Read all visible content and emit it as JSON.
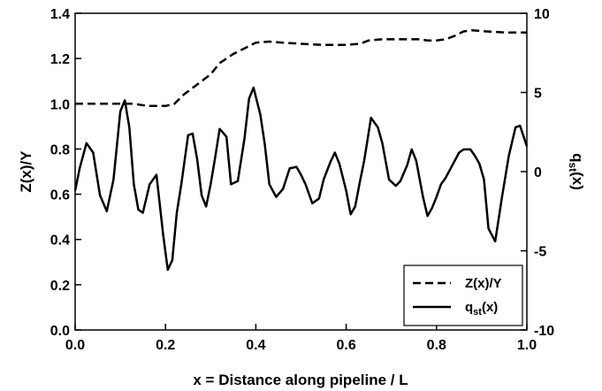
{
  "chart_data": {
    "type": "line",
    "title": "",
    "xlabel": "x = Distance along pipeline / L",
    "ylabel_left": {
      "main": "Z(x)/Y",
      "sub": ""
    },
    "ylabel_right": {
      "main": "q",
      "sub": "st",
      "suffix": "(x)"
    },
    "xlim": [
      0,
      1
    ],
    "ylim_left": [
      0,
      1.4
    ],
    "ylim_right": [
      -10,
      10
    ],
    "x_ticks": [
      "0.0",
      "0.2",
      "0.4",
      "0.6",
      "0.8",
      "1.0"
    ],
    "x_tick_values": [
      0,
      0.2,
      0.4,
      0.6,
      0.8,
      1.0
    ],
    "y_left_ticks": [
      "0.0",
      "0.2",
      "0.4",
      "0.6",
      "0.8",
      "1.0",
      "1.2",
      "1.4"
    ],
    "y_left_tick_values": [
      0,
      0.2,
      0.4,
      0.6,
      0.8,
      1.0,
      1.2,
      1.4
    ],
    "y_right_ticks": [
      "-10",
      "-5",
      "0",
      "5",
      "10"
    ],
    "y_right_tick_values": [
      -10,
      -5,
      0,
      5,
      10
    ],
    "grid": false,
    "legend_position": "bottom-right",
    "series": [
      {
        "name": "Z(x)/Y",
        "axis": "left",
        "style": "dashed",
        "color": "#000000",
        "x": [
          0.0,
          0.05,
          0.1,
          0.13,
          0.16,
          0.2,
          0.22,
          0.24,
          0.26,
          0.28,
          0.3,
          0.32,
          0.35,
          0.38,
          0.4,
          0.43,
          0.46,
          0.5,
          0.55,
          0.6,
          0.63,
          0.65,
          0.68,
          0.72,
          0.76,
          0.78,
          0.8,
          0.82,
          0.84,
          0.86,
          0.88,
          0.91,
          0.95,
          1.0
        ],
        "y": [
          1.0,
          1.0,
          1.0,
          1.0,
          0.99,
          0.99,
          1.0,
          1.04,
          1.07,
          1.1,
          1.13,
          1.18,
          1.22,
          1.25,
          1.27,
          1.275,
          1.27,
          1.265,
          1.26,
          1.26,
          1.265,
          1.28,
          1.285,
          1.285,
          1.285,
          1.28,
          1.28,
          1.285,
          1.3,
          1.32,
          1.325,
          1.32,
          1.315,
          1.315
        ]
      },
      {
        "name": "q_st(x)",
        "label_main": "q",
        "label_sub": "st",
        "label_suffix": "(x)",
        "axis": "right",
        "style": "solid",
        "color": "#000000",
        "x": [
          0.0,
          0.01,
          0.025,
          0.04,
          0.055,
          0.07,
          0.085,
          0.1,
          0.11,
          0.12,
          0.13,
          0.14,
          0.15,
          0.165,
          0.18,
          0.195,
          0.205,
          0.215,
          0.225,
          0.235,
          0.25,
          0.26,
          0.27,
          0.28,
          0.29,
          0.3,
          0.31,
          0.32,
          0.335,
          0.345,
          0.36,
          0.375,
          0.385,
          0.395,
          0.41,
          0.42,
          0.43,
          0.445,
          0.46,
          0.475,
          0.49,
          0.5,
          0.51,
          0.525,
          0.54,
          0.55,
          0.565,
          0.575,
          0.585,
          0.6,
          0.61,
          0.62,
          0.63,
          0.64,
          0.655,
          0.67,
          0.68,
          0.695,
          0.71,
          0.72,
          0.735,
          0.745,
          0.755,
          0.77,
          0.78,
          0.79,
          0.8,
          0.81,
          0.82,
          0.835,
          0.85,
          0.86,
          0.875,
          0.885,
          0.895,
          0.905,
          0.915,
          0.93,
          0.945,
          0.96,
          0.975,
          0.985,
          1.0
        ],
        "y": [
          -1.2,
          0.2,
          1.8,
          1.2,
          -1.5,
          -2.5,
          -0.5,
          3.8,
          4.5,
          2.8,
          -0.8,
          -2.4,
          -2.6,
          -0.8,
          -0.2,
          -4.0,
          -6.2,
          -5.6,
          -2.6,
          -0.8,
          2.3,
          2.4,
          0.8,
          -1.5,
          -2.2,
          -0.8,
          0.9,
          2.7,
          2.2,
          -0.8,
          -0.6,
          2.1,
          4.6,
          5.3,
          3.6,
          1.7,
          -0.8,
          -1.6,
          -1.1,
          0.2,
          0.3,
          -0.2,
          -0.8,
          -2.0,
          -1.7,
          -0.5,
          0.6,
          1.2,
          0.5,
          -1.2,
          -2.7,
          -2.2,
          -0.7,
          0.7,
          3.4,
          2.8,
          1.8,
          -0.5,
          -0.9,
          -0.6,
          0.4,
          1.4,
          0.7,
          -1.6,
          -2.8,
          -2.3,
          -1.6,
          -0.8,
          -0.4,
          0.4,
          1.2,
          1.4,
          1.4,
          1.0,
          0.5,
          -0.5,
          -3.6,
          -4.4,
          -1.6,
          1.0,
          2.8,
          2.9,
          1.6
        ]
      }
    ]
  }
}
